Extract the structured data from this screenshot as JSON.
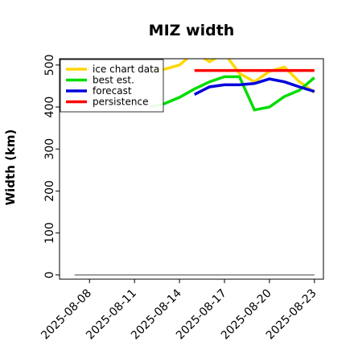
{
  "chart_data": {
    "type": "line",
    "title": "MIZ width",
    "xlabel": "",
    "ylabel": "Width (km)",
    "ylim": [
      -10,
      515
    ],
    "xlim": [
      "2025-08-06",
      "2025-08-23.6"
    ],
    "yticks": [
      0,
      100,
      200,
      300,
      400,
      500
    ],
    "xticks": [
      "2025-08-08",
      "2025-08-11",
      "2025-08-14",
      "2025-08-17",
      "2025-08-20",
      "2025-08-23"
    ],
    "highlighted_tick": "2025-08-14",
    "highlight_color": "#228b22",
    "grid": false,
    "legend_position": "upper-left",
    "series": [
      {
        "name": "ice chart data",
        "color": "#ffd700",
        "x": [
          "2025-08-12",
          "2025-08-13",
          "2025-08-14",
          "2025-08-15",
          "2025-08-16",
          "2025-08-17",
          "2025-08-18",
          "2025-08-19",
          "2025-08-20",
          "2025-08-21",
          "2025-08-22",
          "2025-08-23"
        ],
        "y": [
          485,
          490,
          500,
          530,
          508,
          528,
          480,
          460,
          485,
          495,
          460,
          435
        ]
      },
      {
        "name": "best est.",
        "color": "#00dd00",
        "x": [
          "2025-08-12",
          "2025-08-13",
          "2025-08-14",
          "2025-08-15",
          "2025-08-16",
          "2025-08-17",
          "2025-08-18",
          "2025-08-19",
          "2025-08-20",
          "2025-08-21",
          "2025-08-22",
          "2025-08-23"
        ],
        "y": [
          400,
          408,
          423,
          443,
          460,
          472,
          472,
          393,
          400,
          425,
          440,
          470
        ]
      },
      {
        "name": "forecast",
        "color": "#0000dd",
        "x": [
          "2025-08-15",
          "2025-08-16",
          "2025-08-17",
          "2025-08-18",
          "2025-08-19",
          "2025-08-20",
          "2025-08-21",
          "2025-08-22",
          "2025-08-23"
        ],
        "y": [
          430,
          448,
          453,
          453,
          456,
          467,
          460,
          448,
          437
        ]
      },
      {
        "name": "persistence",
        "color": "#ff0000",
        "x": [
          "2025-08-15",
          "2025-08-23"
        ],
        "y": [
          487,
          487
        ]
      },
      {
        "name": "",
        "color": "#808080",
        "x": [
          "2025-08-07",
          "2025-08-23"
        ],
        "y": [
          0,
          0
        ]
      }
    ]
  }
}
